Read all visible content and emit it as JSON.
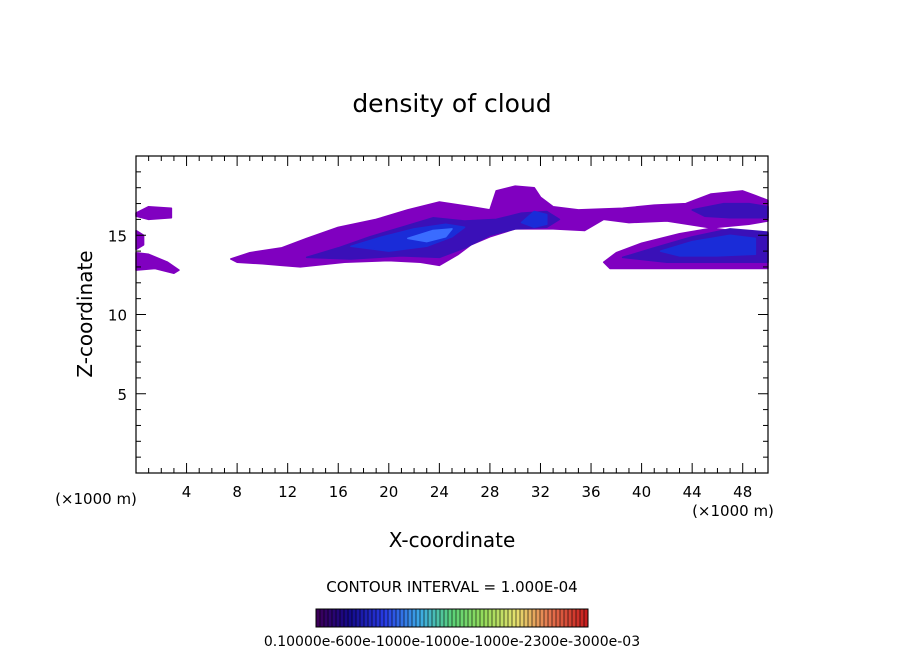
{
  "chart_data": {
    "type": "heatmap",
    "title": "density of cloud",
    "xlabel": "X-coordinate",
    "ylabel": "Z-coordinate",
    "x_unit_left": "(×1000 m)",
    "x_unit_right": "(×1000 m)",
    "xlim": [
      0,
      50
    ],
    "ylim": [
      0,
      20
    ],
    "xticks": [
      4,
      8,
      12,
      16,
      20,
      24,
      28,
      32,
      36,
      40,
      44,
      48
    ],
    "yticks": [
      5,
      10,
      15
    ],
    "contour_interval_text": "CONTOUR INTERVAL = 1.000E-04",
    "colorbar_label_text": "0.10000e-600e-1000e-1000e-1000e-2300e-3000e-03",
    "colors": {
      "outer": "#8000c0",
      "mid": "#3a10b8",
      "inner": "#1a2cd8",
      "core": "#3a6cff"
    },
    "cloud_regions": [
      {
        "level": "outer",
        "points": [
          [
            0,
            16.4
          ],
          [
            1,
            16.8
          ],
          [
            2.8,
            16.7
          ],
          [
            2.8,
            16.1
          ],
          [
            1,
            16.0
          ],
          [
            0,
            16.2
          ]
        ]
      },
      {
        "level": "outer",
        "points": [
          [
            0,
            15.3
          ],
          [
            0.6,
            15.0
          ],
          [
            0.6,
            14.4
          ],
          [
            0,
            14.1
          ]
        ]
      },
      {
        "level": "outer",
        "points": [
          [
            0,
            13.9
          ],
          [
            1,
            13.8
          ],
          [
            2.5,
            13.3
          ],
          [
            3.4,
            12.8
          ],
          [
            3,
            12.6
          ],
          [
            1.5,
            12.9
          ],
          [
            0,
            12.8
          ]
        ]
      },
      {
        "level": "outer",
        "points": [
          [
            7.5,
            13.5
          ],
          [
            9,
            13.9
          ],
          [
            11.5,
            14.2
          ],
          [
            13.5,
            14.8
          ],
          [
            16,
            15.5
          ],
          [
            19,
            16.0
          ],
          [
            21.5,
            16.6
          ],
          [
            24,
            17.1
          ],
          [
            26.5,
            16.8
          ],
          [
            28,
            16.6
          ],
          [
            28.5,
            17.8
          ],
          [
            30,
            18.1
          ],
          [
            31.5,
            18.0
          ],
          [
            32,
            17.4
          ],
          [
            33,
            16.8
          ],
          [
            35,
            16.6
          ],
          [
            38.5,
            16.7
          ],
          [
            41,
            16.9
          ],
          [
            43.5,
            17.0
          ],
          [
            45.5,
            17.6
          ],
          [
            48,
            17.8
          ],
          [
            49,
            17.5
          ],
          [
            50,
            17.2
          ],
          [
            50,
            15.9
          ],
          [
            48.5,
            15.7
          ],
          [
            46,
            15.5
          ],
          [
            43,
            15.1
          ],
          [
            40,
            14.5
          ],
          [
            38,
            13.9
          ],
          [
            37,
            13.3
          ],
          [
            37.5,
            12.9
          ],
          [
            50,
            12.9
          ],
          [
            50,
            15.1
          ],
          [
            48,
            15.2
          ],
          [
            46,
            15.4
          ],
          [
            42,
            15.9
          ],
          [
            39,
            15.8
          ],
          [
            37,
            16.0
          ],
          [
            35.5,
            15.3
          ],
          [
            33,
            15.4
          ],
          [
            30,
            15.4
          ],
          [
            28,
            14.9
          ],
          [
            26.5,
            14.4
          ],
          [
            25.5,
            13.8
          ],
          [
            24,
            13.1
          ],
          [
            22.5,
            13.3
          ],
          [
            20,
            13.4
          ],
          [
            16.5,
            13.3
          ],
          [
            13,
            13.0
          ],
          [
            11.5,
            13.1
          ],
          [
            10,
            13.2
          ],
          [
            8,
            13.3
          ]
        ]
      },
      {
        "level": "mid",
        "points": [
          [
            13.5,
            13.6
          ],
          [
            16,
            14.2
          ],
          [
            18.5,
            14.9
          ],
          [
            21,
            15.5
          ],
          [
            23.5,
            16.1
          ],
          [
            26,
            15.9
          ],
          [
            28.5,
            16.0
          ],
          [
            30.5,
            16.4
          ],
          [
            32.5,
            16.5
          ],
          [
            33.5,
            16.0
          ],
          [
            32.5,
            15.5
          ],
          [
            30,
            15.4
          ],
          [
            28,
            15.0
          ],
          [
            26,
            14.2
          ],
          [
            24,
            13.6
          ],
          [
            21,
            13.7
          ],
          [
            17,
            13.5
          ]
        ]
      },
      {
        "level": "mid",
        "points": [
          [
            38.5,
            13.6
          ],
          [
            41,
            14.2
          ],
          [
            44,
            14.9
          ],
          [
            47,
            15.4
          ],
          [
            50,
            15.2
          ],
          [
            50,
            13.3
          ],
          [
            46,
            13.3
          ],
          [
            42,
            13.3
          ]
        ]
      },
      {
        "level": "mid",
        "points": [
          [
            44,
            16.6
          ],
          [
            46.5,
            17.0
          ],
          [
            48.5,
            17.0
          ],
          [
            50,
            16.8
          ],
          [
            50,
            16.1
          ],
          [
            47,
            16.1
          ],
          [
            45,
            16.2
          ]
        ]
      },
      {
        "level": "inner",
        "points": [
          [
            17,
            14.3
          ],
          [
            19.5,
            14.9
          ],
          [
            22,
            15.4
          ],
          [
            24.5,
            15.7
          ],
          [
            26,
            15.5
          ],
          [
            25,
            14.9
          ],
          [
            23,
            14.3
          ],
          [
            20,
            14.0
          ]
        ]
      },
      {
        "level": "inner",
        "points": [
          [
            30.5,
            15.8
          ],
          [
            31.5,
            16.5
          ],
          [
            32.5,
            16.3
          ],
          [
            32.5,
            15.7
          ],
          [
            31.5,
            15.5
          ]
        ]
      },
      {
        "level": "inner",
        "points": [
          [
            41.5,
            14.0
          ],
          [
            44,
            14.6
          ],
          [
            47,
            15.0
          ],
          [
            49,
            14.8
          ],
          [
            49,
            13.8
          ],
          [
            46,
            13.7
          ],
          [
            43,
            13.7
          ]
        ]
      },
      {
        "level": "core",
        "points": [
          [
            21.5,
            14.8
          ],
          [
            23.5,
            15.3
          ],
          [
            25,
            15.4
          ],
          [
            24.5,
            14.9
          ],
          [
            23,
            14.6
          ]
        ]
      }
    ]
  }
}
